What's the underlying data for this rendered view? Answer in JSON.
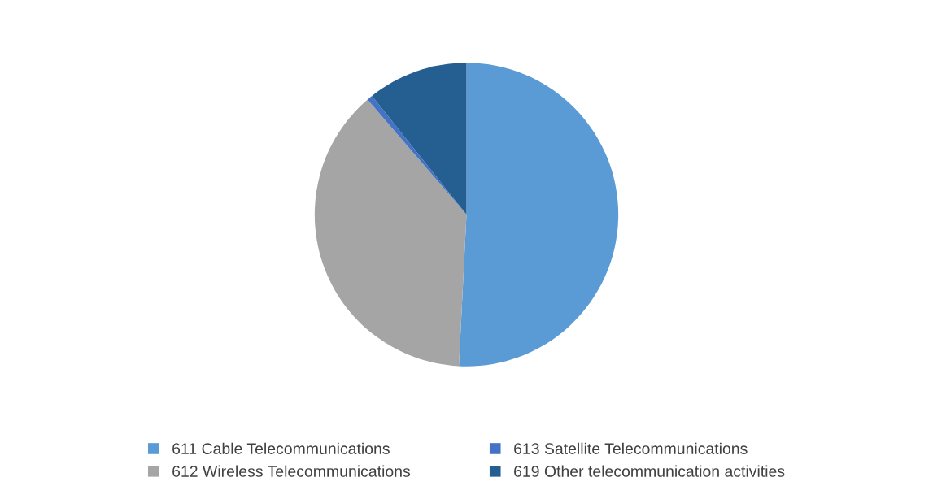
{
  "chart_data": {
    "type": "pie",
    "categories": [
      "611 Cable Telecommunications",
      "612 Wireless Telecommunications",
      "613 Satellite Telecommunications",
      "619 Other telecommunication activities"
    ],
    "values": [
      50.8,
      37.9,
      0.6,
      10.7
    ],
    "colors": [
      "#5b9bd5",
      "#a5a5a5",
      "#4472c4",
      "#255e91"
    ],
    "legend": "bottom"
  }
}
